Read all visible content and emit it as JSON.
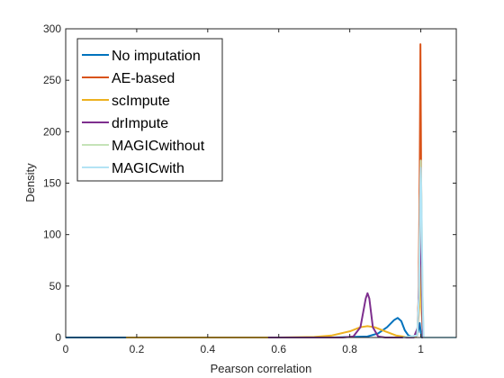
{
  "chart_data": {
    "type": "line",
    "title": "",
    "xlabel": "Pearson correlation",
    "ylabel": "Density",
    "xlim": [
      0,
      1.1
    ],
    "ylim": [
      0,
      300
    ],
    "xticks": [
      0,
      0.2,
      0.4,
      0.6,
      0.8,
      1
    ],
    "xtick_labels": [
      "0",
      "0.2",
      "0.4",
      "0.6",
      "0.8",
      "1"
    ],
    "yticks": [
      0,
      50,
      100,
      150,
      200,
      250,
      300
    ],
    "ytick_labels": [
      "0",
      "50",
      "100",
      "150",
      "200",
      "250",
      "300"
    ],
    "grid": false,
    "legend_position": "top-left",
    "series": [
      {
        "name": "No imputation",
        "color": "#0072BD",
        "points": [
          [
            0,
            0
          ],
          [
            0.17,
            0
          ],
          [
            0.75,
            0
          ],
          [
            0.85,
            1
          ],
          [
            0.88,
            4
          ],
          [
            0.905,
            10
          ],
          [
            0.925,
            17
          ],
          [
            0.935,
            19
          ],
          [
            0.945,
            16
          ],
          [
            0.955,
            7
          ],
          [
            0.965,
            2
          ],
          [
            0.975,
            1
          ],
          [
            0.985,
            1
          ],
          [
            0.992,
            5
          ],
          [
            0.997,
            14
          ],
          [
            1.0,
            5
          ],
          [
            1.003,
            0
          ],
          [
            1.1,
            0
          ]
        ]
      },
      {
        "name": "AE-based",
        "color": "#D95319",
        "points": [
          [
            0.98,
            0
          ],
          [
            0.99,
            2
          ],
          [
            0.994,
            40
          ],
          [
            0.997,
            160
          ],
          [
            0.999,
            285
          ],
          [
            1.001,
            160
          ],
          [
            1.003,
            40
          ],
          [
            1.006,
            0
          ],
          [
            1.1,
            0
          ]
        ]
      },
      {
        "name": "scImpute",
        "color": "#EDB120",
        "points": [
          [
            0.17,
            0
          ],
          [
            0.6,
            0
          ],
          [
            0.7,
            0.5
          ],
          [
            0.75,
            2
          ],
          [
            0.8,
            6
          ],
          [
            0.83,
            10
          ],
          [
            0.85,
            11
          ],
          [
            0.87,
            10
          ],
          [
            0.9,
            6
          ],
          [
            0.93,
            2
          ],
          [
            0.96,
            0.5
          ],
          [
            0.98,
            0.5
          ],
          [
            0.99,
            2
          ],
          [
            0.996,
            30
          ],
          [
            0.999,
            100
          ],
          [
            1.002,
            30
          ],
          [
            1.006,
            0
          ],
          [
            1.1,
            0
          ]
        ]
      },
      {
        "name": "drImpute",
        "color": "#7E2F8E",
        "points": [
          [
            0.57,
            0
          ],
          [
            0.78,
            0
          ],
          [
            0.81,
            1
          ],
          [
            0.83,
            10
          ],
          [
            0.845,
            38
          ],
          [
            0.85,
            43
          ],
          [
            0.855,
            38
          ],
          [
            0.865,
            10
          ],
          [
            0.88,
            1
          ],
          [
            0.9,
            0
          ],
          [
            0.98,
            0
          ],
          [
            0.992,
            10
          ],
          [
            0.997,
            80
          ],
          [
            0.999,
            135
          ],
          [
            1.002,
            60
          ],
          [
            1.006,
            0
          ],
          [
            1.1,
            0
          ]
        ]
      },
      {
        "name": "MAGICwithout",
        "color": "#C5E3B8",
        "points": [
          [
            0.95,
            0
          ],
          [
            0.99,
            2
          ],
          [
            0.995,
            40
          ],
          [
            0.998,
            130
          ],
          [
            1.0,
            172
          ],
          [
            1.002,
            130
          ],
          [
            1.005,
            40
          ],
          [
            1.008,
            0
          ],
          [
            1.1,
            0
          ]
        ]
      },
      {
        "name": "MAGICwith",
        "color": "#B3E3F4",
        "points": [
          [
            0.95,
            0
          ],
          [
            0.99,
            2
          ],
          [
            0.995,
            40
          ],
          [
            0.998,
            130
          ],
          [
            1.0,
            165
          ],
          [
            1.002,
            130
          ],
          [
            1.005,
            40
          ],
          [
            1.008,
            0
          ],
          [
            1.1,
            0
          ]
        ]
      }
    ]
  }
}
